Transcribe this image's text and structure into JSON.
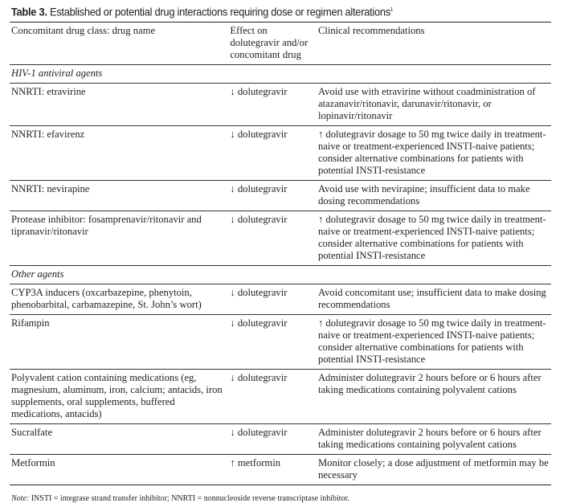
{
  "title": {
    "label": "Table 3.",
    "text": "Established or potential drug interactions requiring dose or regimen alterations",
    "sup": "1"
  },
  "headers": [
    "Concomitant drug class: drug name",
    "Effect on dolutegravir and/or concomitant drug",
    "Clinical recommendations"
  ],
  "sections": [
    {
      "name": "HIV-1 antiviral agents",
      "rows": [
        {
          "drug": "NNRTI: etravirine",
          "effect": "↓ dolutegravir",
          "rec": "Avoid use with etravirine without coadministration of atazanavir/ritonavir, darunavir/ritonavir, or lopinavir/ritonavir"
        },
        {
          "drug": "NNRTI: efavirenz",
          "effect": "↓ dolutegravir",
          "rec": "↑ dolutegravir dosage to 50 mg twice daily in treatment-naive or treatment-experienced INSTI-naive patients; consider alternative combinations for patients with potential INSTI-resistance"
        },
        {
          "drug": "NNRTI: nevirapine",
          "effect": "↓ dolutegravir",
          "rec": "Avoid use with nevirapine; insufficient data to make dosing recommendations"
        },
        {
          "drug": "Protease inhibitor: fosamprenavir/ritonavir and tipranavir/ritonavir",
          "effect": "↓ dolutegravir",
          "rec": "↑ dolutegravir dosage to 50 mg twice daily in treatment-naive or treatment-experienced INSTI-naive patients; consider alternative combinations for patients with potential INSTI-resistance"
        }
      ]
    },
    {
      "name": "Other agents",
      "rows": [
        {
          "drug": "CYP3A inducers (oxcarbazepine, phenytoin, phenobarbital, carbamazepine, St. John’s wort)",
          "effect": "↓ dolutegravir",
          "rec": "Avoid concomitant use; insufficient data to make dosing recommendations"
        },
        {
          "drug": "Rifampin",
          "effect": "↓ dolutegravir",
          "rec": "↑ dolutegravir dosage to 50 mg twice daily in treatment-naive or treatment-experienced INSTI-naive patients; consider alternative combinations for patients with potential INSTI-resistance"
        },
        {
          "drug": "Polyvalent cation containing medications (eg, magnesium, aluminum, iron, calcium; antacids, iron supplements, oral supplements, buffered medications, antacids)",
          "effect": "↓ dolutegravir",
          "rec": "Administer dolutegravir 2 hours before or 6 hours after taking medications containing polyvalent cations"
        },
        {
          "drug": "Sucralfate",
          "effect": "↓ dolutegravir",
          "rec": "Administer dolutegravir 2 hours before or 6 hours after taking medications containing polyvalent cations"
        },
        {
          "drug": "Metformin",
          "effect": "↑ metformin",
          "rec": "Monitor closely; a dose adjustment of metformin may be necessary"
        }
      ]
    }
  ],
  "note": {
    "label": "Note:",
    "text": " INSTI = integrase strand transfer inhibitor; NNRTI = nonnucleoside reverse transcriptase inhibitor."
  }
}
